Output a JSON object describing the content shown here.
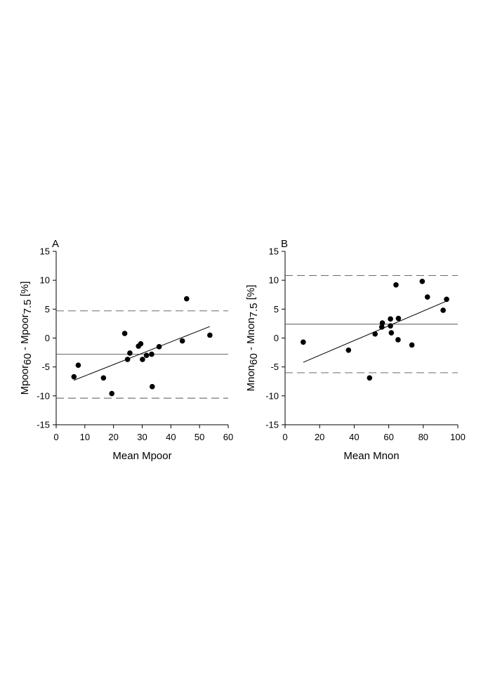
{
  "chart_data": [
    {
      "type": "scatter",
      "panel_label": "A",
      "xlabel": "Mean Mpoor",
      "ylabel": {
        "parts": [
          "Mpoor",
          "60",
          " - Mpoor",
          "7.5",
          " [%]"
        ]
      },
      "xlim": [
        0,
        60
      ],
      "ylim": [
        -15,
        15
      ],
      "xticks": [
        0,
        10,
        20,
        30,
        40,
        50,
        60
      ],
      "yticks": [
        -15,
        -10,
        -5,
        0,
        5,
        10,
        15
      ],
      "points": [
        [
          6.2,
          -6.7
        ],
        [
          7.7,
          -4.7
        ],
        [
          16.5,
          -6.9
        ],
        [
          19.4,
          -9.6
        ],
        [
          23.9,
          0.8
        ],
        [
          24.9,
          -3.7
        ],
        [
          25.7,
          -2.6
        ],
        [
          28.7,
          -1.4
        ],
        [
          29.5,
          -1.0
        ],
        [
          30.1,
          -3.7
        ],
        [
          31.5,
          -3.0
        ],
        [
          33.3,
          -2.8
        ],
        [
          33.5,
          -8.4
        ],
        [
          35.9,
          -1.5
        ],
        [
          44.0,
          -0.5
        ],
        [
          45.5,
          6.8
        ],
        [
          53.6,
          0.5
        ]
      ],
      "mean_line": -2.8,
      "limits_of_agreement": [
        4.7,
        -10.4
      ],
      "regression": {
        "x": [
          6.2,
          53.6
        ],
        "y": [
          -7.3,
          2.0
        ]
      }
    },
    {
      "type": "scatter",
      "panel_label": "B",
      "xlabel": "Mean Mnon",
      "ylabel": {
        "parts": [
          "Mnon",
          "60",
          " - Mnon",
          "7.5",
          " [%]"
        ]
      },
      "xlim": [
        0,
        100
      ],
      "ylim": [
        -15,
        15
      ],
      "xticks": [
        0,
        20,
        40,
        60,
        80,
        100
      ],
      "yticks": [
        -15,
        -10,
        -5,
        0,
        5,
        10,
        15
      ],
      "points": [
        [
          10.5,
          -0.7
        ],
        [
          36.7,
          -2.1
        ],
        [
          48.9,
          -6.9
        ],
        [
          52.1,
          0.7
        ],
        [
          56.0,
          1.9
        ],
        [
          56.3,
          2.6
        ],
        [
          61.0,
          3.3
        ],
        [
          61.0,
          2.1
        ],
        [
          61.5,
          0.9
        ],
        [
          64.2,
          9.2
        ],
        [
          65.4,
          -0.3
        ],
        [
          65.6,
          3.4
        ],
        [
          73.4,
          -1.2
        ],
        [
          79.4,
          9.8
        ],
        [
          82.4,
          7.1
        ],
        [
          91.5,
          4.8
        ],
        [
          93.5,
          6.7
        ]
      ],
      "mean_line": 2.4,
      "limits_of_agreement": [
        10.8,
        -6.0
      ],
      "regression": {
        "x": [
          10.5,
          93.5
        ],
        "y": [
          -4.2,
          6.4
        ]
      }
    }
  ]
}
